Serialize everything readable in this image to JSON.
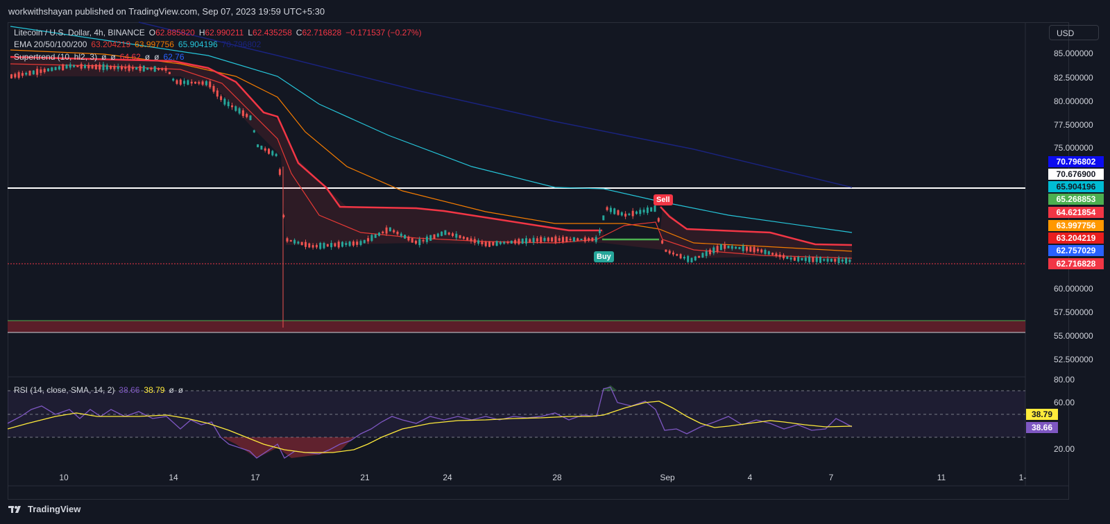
{
  "publisher_line": "workwithshayan published on TradingView.com, Sep 07, 2023 19:59 UTC+5:30",
  "legend": {
    "symbol": "Litecoin / U.S. Dollar, 4h, BINANCE",
    "open_label": "O",
    "open": "62.885820",
    "high_label": "H",
    "high": "62.990211",
    "low_label": "L",
    "low": "62.435258",
    "close_label": "C",
    "close": "62.716828",
    "change": "−0.171537 (−0.27%)",
    "ema_label": "EMA 20/50/100/200",
    "ema20": "63.204219",
    "ema50": "63.997756",
    "ema100": "65.904196",
    "ema200": "70.796802",
    "supertrend_label": "Supertrend (10, hl2, 3)",
    "st_v1": "ø",
    "st_v2": "ø",
    "st_v3": "64.62",
    "st_v4": "ø",
    "st_v5": "ø",
    "st_v6": "62.76",
    "rsi_label": "RSI (14, close, SMA, 14, 2)",
    "rsi_val": "38.66",
    "rsi_sma": "38.79",
    "rsi_v3": "ø",
    "rsi_v4": "ø"
  },
  "currency_button": "USD",
  "price_axis": [
    "85.000000",
    "82.500000",
    "80.000000",
    "77.500000",
    "75.000000",
    "60.000000",
    "57.500000",
    "55.000000",
    "52.500000"
  ],
  "price_badges": [
    {
      "value": "70.796802",
      "bg": "#0c0cf0",
      "fg": "#ffffff"
    },
    {
      "value": "70.676900",
      "bg": "#ffffff",
      "fg": "#131722"
    },
    {
      "value": "65.904196",
      "bg": "#00bcd4",
      "fg": "#131722"
    },
    {
      "value": "65.268853",
      "bg": "#4caf50",
      "fg": "#ffffff"
    },
    {
      "value": "64.621854",
      "bg": "#f23645",
      "fg": "#ffffff"
    },
    {
      "value": "63.997756",
      "bg": "#ff9800",
      "fg": "#ffffff"
    },
    {
      "value": "63.204219",
      "bg": "#e91e1e",
      "fg": "#ffffff"
    },
    {
      "value": "62.757029",
      "bg": "#2962ff",
      "fg": "#ffffff"
    },
    {
      "value": "62.716828",
      "bg": "#f23645",
      "fg": "#ffffff"
    }
  ],
  "rsi_axis": [
    "80.00",
    "60.00",
    "20.00"
  ],
  "rsi_badges": [
    {
      "value": "38.79",
      "bg": "#ffeb3b",
      "fg": "#131722"
    },
    {
      "value": "38.66",
      "bg": "#7e57c2",
      "fg": "#ffffff"
    }
  ],
  "date_axis": [
    "10",
    "14",
    "17",
    "21",
    "24",
    "28",
    "Sep",
    "4",
    "7",
    "11",
    "1-"
  ],
  "signals": {
    "buy": "Buy",
    "sell": "Sell"
  },
  "footer_brand": "TradingView",
  "colors": {
    "background": "#131722",
    "up": "#26a69a",
    "down": "#ef5350",
    "ema20": "#e53935",
    "ema50": "#f57c00",
    "ema100": "#26c6da",
    "ema200": "#1a237e",
    "supertrend_down": "#f23645",
    "supertrend_up": "#4caf50",
    "rsi": "#7e57c2",
    "rsi_sma": "#ffeb3b"
  }
}
